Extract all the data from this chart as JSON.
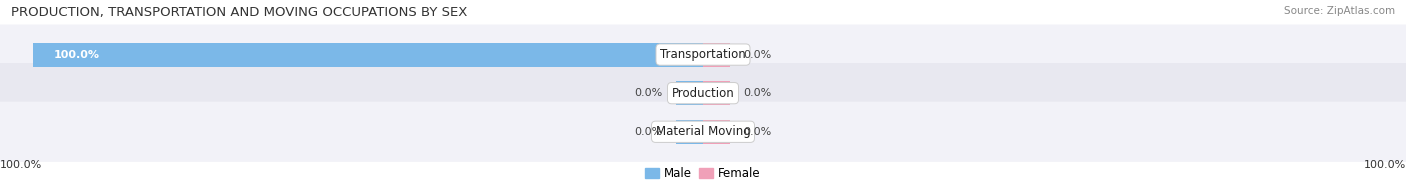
{
  "title": "PRODUCTION, TRANSPORTATION AND MOVING OCCUPATIONS BY SEX",
  "source": "Source: ZipAtlas.com",
  "categories": [
    "Transportation",
    "Production",
    "Material Moving"
  ],
  "male_values": [
    100.0,
    0.0,
    0.0
  ],
  "female_values": [
    0.0,
    0.0,
    0.0
  ],
  "male_color": "#7bb8e8",
  "female_color": "#f0a0b8",
  "row_bg_light": "#f2f2f8",
  "row_bg_dark": "#e8e8f0",
  "label_left_male": [
    "100.0%",
    "0.0%",
    "0.0%"
  ],
  "label_right_female": [
    "0.0%",
    "0.0%",
    "0.0%"
  ],
  "bottom_left_label": "100.0%",
  "bottom_right_label": "100.0%",
  "title_fontsize": 9.5,
  "source_fontsize": 7.5,
  "tick_fontsize": 8,
  "bar_label_fontsize": 8,
  "cat_label_fontsize": 8.5,
  "legend_fontsize": 8.5,
  "max_val": 100
}
